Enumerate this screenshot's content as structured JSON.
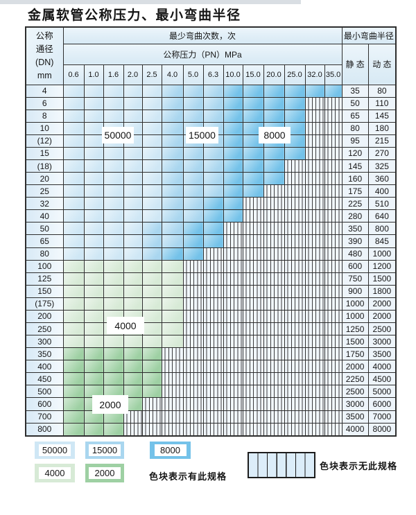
{
  "title": "金属软管公称压力、最小弯曲半径",
  "colors": {
    "c50000": "#cfe7f5",
    "c15000": "#a9d6ef",
    "c8000": "#74c2e9",
    "c4000": "#d7ead6",
    "c2000": "#9ed0a3",
    "hatch_bg": "#f1f7fc",
    "hatch_line": "#3a3a3a"
  },
  "table": {
    "corner_lines": [
      "公称",
      "通径",
      "(DN)",
      "mm"
    ],
    "bend_cycles_header": "最少弯曲次数，次",
    "pressure_header": "公称压力（PN）MPa",
    "radius_header": "最小弯曲半径",
    "static_header": "静 态",
    "dynamic_header": "动 态",
    "pressures": [
      "0.6",
      "1.0",
      "1.6",
      "2.0",
      "2.5",
      "4.0",
      "5.0",
      "6.3",
      "10.0",
      "15.0",
      "20.0",
      "25.0",
      "32.0",
      "35.0"
    ],
    "rows": [
      {
        "dn": "4",
        "zones": [
          [
            5,
            "c50000"
          ],
          [
            8,
            "c15000"
          ],
          [
            14,
            "c8000"
          ]
        ],
        "static": "35",
        "dynamic": "80"
      },
      {
        "dn": "6",
        "zones": [
          [
            5,
            "c50000"
          ],
          [
            8,
            "c15000"
          ],
          [
            12,
            "c8000"
          ]
        ],
        "static": "50",
        "dynamic": "110"
      },
      {
        "dn": "8",
        "zones": [
          [
            5,
            "c50000"
          ],
          [
            8,
            "c15000"
          ],
          [
            12,
            "c8000"
          ]
        ],
        "static": "65",
        "dynamic": "145"
      },
      {
        "dn": "10",
        "zones": [
          [
            5,
            "c50000"
          ],
          [
            8,
            "c15000"
          ],
          [
            12,
            "c8000"
          ]
        ],
        "static": "80",
        "dynamic": "180"
      },
      {
        "dn": "(12)",
        "zones": [
          [
            5,
            "c50000"
          ],
          [
            8,
            "c15000"
          ],
          [
            12,
            "c8000"
          ]
        ],
        "static": "95",
        "dynamic": "215"
      },
      {
        "dn": "15",
        "zones": [
          [
            5,
            "c50000"
          ],
          [
            8,
            "c15000"
          ],
          [
            12,
            "c8000"
          ]
        ],
        "static": "120",
        "dynamic": "270"
      },
      {
        "dn": "(18)",
        "zones": [
          [
            5,
            "c50000"
          ],
          [
            8,
            "c15000"
          ],
          [
            11,
            "c8000"
          ]
        ],
        "static": "145",
        "dynamic": "325"
      },
      {
        "dn": "20",
        "zones": [
          [
            5,
            "c50000"
          ],
          [
            8,
            "c15000"
          ],
          [
            11,
            "c8000"
          ]
        ],
        "static": "160",
        "dynamic": "360"
      },
      {
        "dn": "25",
        "zones": [
          [
            5,
            "c50000"
          ],
          [
            8,
            "c15000"
          ],
          [
            10,
            "c8000"
          ]
        ],
        "static": "175",
        "dynamic": "400"
      },
      {
        "dn": "32",
        "zones": [
          [
            5,
            "c50000"
          ],
          [
            7,
            "c15000"
          ],
          [
            9,
            "c8000"
          ]
        ],
        "static": "225",
        "dynamic": "510"
      },
      {
        "dn": "40",
        "zones": [
          [
            5,
            "c50000"
          ],
          [
            7,
            "c15000"
          ],
          [
            9,
            "c8000"
          ]
        ],
        "static": "280",
        "dynamic": "640"
      },
      {
        "dn": "50",
        "zones": [
          [
            4,
            "c50000"
          ],
          [
            6,
            "c15000"
          ],
          [
            8,
            "c8000"
          ]
        ],
        "static": "350",
        "dynamic": "800"
      },
      {
        "dn": "65",
        "zones": [
          [
            4,
            "c50000"
          ],
          [
            6,
            "c15000"
          ],
          [
            8,
            "c8000"
          ]
        ],
        "static": "390",
        "dynamic": "845"
      },
      {
        "dn": "80",
        "zones": [
          [
            4,
            "c50000"
          ],
          [
            5,
            "c15000"
          ],
          [
            7,
            "c8000"
          ]
        ],
        "static": "480",
        "dynamic": "1000"
      },
      {
        "dn": "100",
        "zones": [
          [
            6,
            "c4000"
          ]
        ],
        "static": "600",
        "dynamic": "1200"
      },
      {
        "dn": "125",
        "zones": [
          [
            6,
            "c4000"
          ]
        ],
        "static": "750",
        "dynamic": "1500"
      },
      {
        "dn": "150",
        "zones": [
          [
            6,
            "c4000"
          ]
        ],
        "static": "900",
        "dynamic": "1800"
      },
      {
        "dn": "(175)",
        "zones": [
          [
            6,
            "c4000"
          ]
        ],
        "static": "1000",
        "dynamic": "2000"
      },
      {
        "dn": "200",
        "zones": [
          [
            6,
            "c4000"
          ]
        ],
        "static": "1000",
        "dynamic": "2000"
      },
      {
        "dn": "250",
        "zones": [
          [
            6,
            "c4000"
          ]
        ],
        "static": "1250",
        "dynamic": "2500"
      },
      {
        "dn": "300",
        "zones": [
          [
            6,
            "c4000"
          ]
        ],
        "static": "1500",
        "dynamic": "3000"
      },
      {
        "dn": "350",
        "zones": [
          [
            5,
            "c2000"
          ]
        ],
        "static": "1750",
        "dynamic": "3500"
      },
      {
        "dn": "400",
        "zones": [
          [
            5,
            "c2000"
          ]
        ],
        "static": "2000",
        "dynamic": "4000"
      },
      {
        "dn": "450",
        "zones": [
          [
            5,
            "c2000"
          ]
        ],
        "static": "2250",
        "dynamic": "4500"
      },
      {
        "dn": "500",
        "zones": [
          [
            5,
            "c2000"
          ]
        ],
        "static": "2500",
        "dynamic": "5000"
      },
      {
        "dn": "600",
        "zones": [
          [
            4,
            "c2000"
          ]
        ],
        "static": "3000",
        "dynamic": "6000"
      },
      {
        "dn": "700",
        "zones": [
          [
            3,
            "c2000"
          ]
        ],
        "static": "3500",
        "dynamic": "7000"
      },
      {
        "dn": "800",
        "zones": [
          [
            3,
            "c2000"
          ]
        ],
        "static": "4000",
        "dynamic": "8000"
      }
    ]
  },
  "overlay_labels": [
    {
      "id": "k50000",
      "text": "50000"
    },
    {
      "id": "k15000",
      "text": "15000"
    },
    {
      "id": "k8000",
      "text": "8000"
    },
    {
      "id": "k4000",
      "text": "4000"
    },
    {
      "id": "k2000",
      "text": "2000"
    }
  ],
  "legend": {
    "swatches": [
      {
        "label": "50000",
        "color_key": "c50000"
      },
      {
        "label": "15000",
        "color_key": "c15000"
      },
      {
        "label": "8000",
        "color_key": "c8000"
      },
      {
        "label": "4000",
        "color_key": "c4000"
      },
      {
        "label": "2000",
        "color_key": "c2000"
      }
    ],
    "has_spec_note": "色块表示有此规格",
    "no_spec_note": "色块表示无此规格"
  }
}
